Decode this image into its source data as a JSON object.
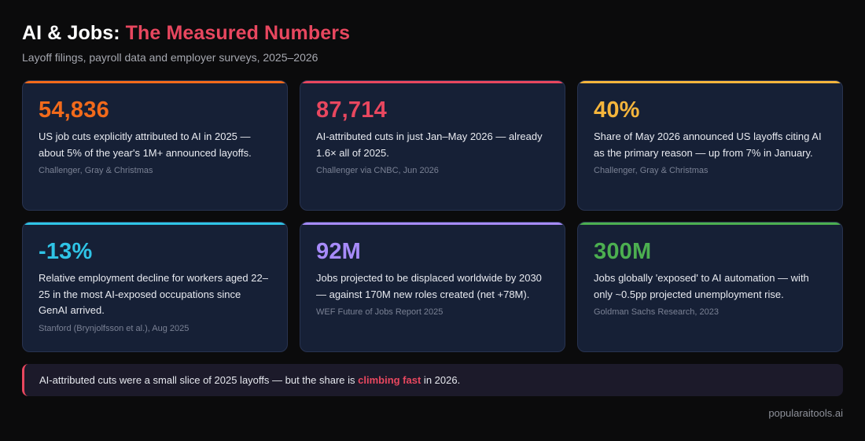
{
  "header": {
    "title_prefix": "AI & Jobs:",
    "title_accent": "The Measured Numbers",
    "subtitle": "Layoff filings, payroll data and employer surveys, 2025–2026"
  },
  "cards": [
    {
      "stat": "54,836",
      "accent": "#f26a1b",
      "description": "US job cuts explicitly attributed to AI in 2025 — about 5% of the year's 1M+ announced layoffs.",
      "source": "Challenger, Gray & Christmas"
    },
    {
      "stat": "87,714",
      "accent": "#e8475f",
      "description": "AI-attributed cuts in just Jan–May 2026 — already 1.6× all of 2025.",
      "source": "Challenger via CNBC, Jun 2026"
    },
    {
      "stat": "40%",
      "accent": "#f5b53c",
      "description": "Share of May 2026 announced US layoffs citing AI as the primary reason — up from 7% in January.",
      "source": "Challenger, Gray & Christmas"
    },
    {
      "stat": "-13%",
      "accent": "#2fc4e6",
      "description": "Relative employment decline for workers aged 22–25 in the most AI-exposed occupations since GenAI arrived.",
      "source": "Stanford (Brynjolfsson et al.), Aug 2025"
    },
    {
      "stat": "92M",
      "accent": "#a78bfa",
      "description": "Jobs projected to be displaced worldwide by 2030 — against 170M new roles created (net +78M).",
      "source": "WEF Future of Jobs Report 2025"
    },
    {
      "stat": "300M",
      "accent": "#4caf50",
      "description": "Jobs globally 'exposed' to AI automation — with only ~0.5pp projected unemployment rise.",
      "source": "Goldman Sachs Research, 2023"
    }
  ],
  "callout": {
    "text_before": "AI-attributed cuts were a small slice of 2025 layoffs — but the share is ",
    "highlight": "climbing fast",
    "text_after": " in 2026.",
    "accent": "#e8475f"
  },
  "footer": {
    "brand": "popularaitools.ai"
  }
}
